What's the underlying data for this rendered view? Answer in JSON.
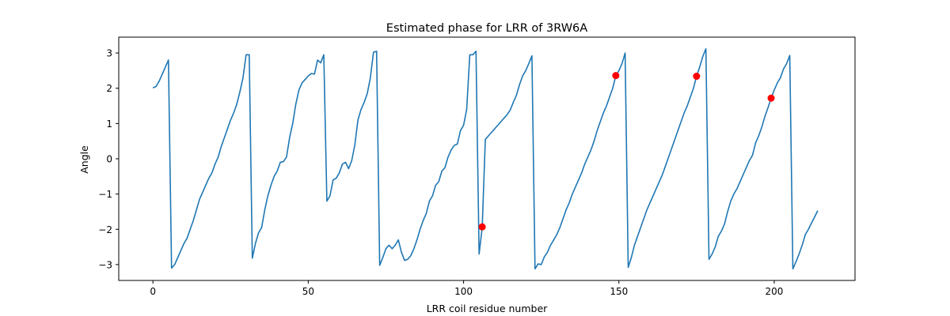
{
  "chart_data": {
    "type": "line",
    "title": "Estimated phase for LRR of 3RW6A",
    "xlabel": "LRR coil residue number",
    "ylabel": "Angle",
    "xlim": [
      -11,
      226
    ],
    "ylim": [
      -3.45,
      3.45
    ],
    "xticks": [
      0,
      50,
      100,
      150,
      200
    ],
    "yticks": [
      -3,
      -2,
      -1,
      0,
      1,
      2,
      3
    ],
    "grid": false,
    "colors": {
      "line": "#1f77b4",
      "marker": "#ff0000"
    },
    "series": [
      {
        "values": [
          [
            0,
            2.01
          ],
          [
            1,
            2.05
          ],
          [
            2,
            2.2
          ],
          [
            3,
            2.4
          ],
          [
            4,
            2.6
          ],
          [
            5,
            2.8
          ],
          [
            6,
            -3.1
          ],
          [
            7,
            -3.0
          ],
          [
            8,
            -2.8
          ],
          [
            9,
            -2.6
          ],
          [
            10,
            -2.4
          ],
          [
            11,
            -2.25
          ],
          [
            12,
            -2.0
          ],
          [
            13,
            -1.75
          ],
          [
            14,
            -1.45
          ],
          [
            15,
            -1.15
          ],
          [
            16,
            -0.95
          ],
          [
            17,
            -0.75
          ],
          [
            18,
            -0.55
          ],
          [
            19,
            -0.4
          ],
          [
            20,
            -0.15
          ],
          [
            21,
            0.05
          ],
          [
            22,
            0.35
          ],
          [
            23,
            0.6
          ],
          [
            24,
            0.85
          ],
          [
            25,
            1.1
          ],
          [
            26,
            1.3
          ],
          [
            27,
            1.55
          ],
          [
            28,
            1.9
          ],
          [
            29,
            2.3
          ],
          [
            30,
            2.95
          ],
          [
            31,
            2.95
          ],
          [
            32,
            -2.82
          ],
          [
            33,
            -2.4
          ],
          [
            34,
            -2.1
          ],
          [
            35,
            -1.95
          ],
          [
            36,
            -1.45
          ],
          [
            37,
            -1.05
          ],
          [
            38,
            -0.75
          ],
          [
            39,
            -0.5
          ],
          [
            40,
            -0.35
          ],
          [
            41,
            -0.1
          ],
          [
            42,
            -0.08
          ],
          [
            43,
            0.05
          ],
          [
            44,
            0.6
          ],
          [
            45,
            1.0
          ],
          [
            46,
            1.55
          ],
          [
            47,
            1.95
          ],
          [
            48,
            2.15
          ],
          [
            49,
            2.25
          ],
          [
            50,
            2.35
          ],
          [
            51,
            2.42
          ],
          [
            52,
            2.4
          ],
          [
            53,
            2.8
          ],
          [
            54,
            2.72
          ],
          [
            55,
            2.95
          ],
          [
            56,
            -1.2
          ],
          [
            57,
            -1.05
          ],
          [
            58,
            -0.6
          ],
          [
            59,
            -0.55
          ],
          [
            60,
            -0.4
          ],
          [
            61,
            -0.15
          ],
          [
            62,
            -0.1
          ],
          [
            63,
            -0.28
          ],
          [
            64,
            -0.05
          ],
          [
            65,
            0.4
          ],
          [
            66,
            1.1
          ],
          [
            67,
            1.4
          ],
          [
            68,
            1.6
          ],
          [
            69,
            1.85
          ],
          [
            70,
            2.3
          ],
          [
            71,
            3.02
          ],
          [
            72,
            3.05
          ],
          [
            73,
            -3.02
          ],
          [
            74,
            -2.8
          ],
          [
            75,
            -2.55
          ],
          [
            76,
            -2.45
          ],
          [
            77,
            -2.55
          ],
          [
            78,
            -2.45
          ],
          [
            79,
            -2.3
          ],
          [
            80,
            -2.65
          ],
          [
            81,
            -2.88
          ],
          [
            82,
            -2.85
          ],
          [
            83,
            -2.75
          ],
          [
            84,
            -2.55
          ],
          [
            85,
            -2.3
          ],
          [
            86,
            -2.0
          ],
          [
            87,
            -1.75
          ],
          [
            88,
            -1.55
          ],
          [
            89,
            -1.2
          ],
          [
            90,
            -1.05
          ],
          [
            91,
            -0.75
          ],
          [
            92,
            -0.65
          ],
          [
            93,
            -0.35
          ],
          [
            94,
            -0.25
          ],
          [
            95,
            0.05
          ],
          [
            96,
            0.25
          ],
          [
            97,
            0.38
          ],
          [
            98,
            0.42
          ],
          [
            99,
            0.8
          ],
          [
            100,
            0.95
          ],
          [
            101,
            1.4
          ],
          [
            102,
            2.95
          ],
          [
            103,
            2.95
          ],
          [
            104,
            3.05
          ],
          [
            105,
            -2.7
          ],
          [
            106,
            -1.95
          ],
          [
            107,
            0.55
          ],
          [
            108,
            0.65
          ],
          [
            109,
            0.75
          ],
          [
            110,
            0.85
          ],
          [
            111,
            0.95
          ],
          [
            112,
            1.05
          ],
          [
            113,
            1.15
          ],
          [
            114,
            1.25
          ],
          [
            115,
            1.38
          ],
          [
            116,
            1.6
          ],
          [
            117,
            1.8
          ],
          [
            118,
            2.1
          ],
          [
            119,
            2.35
          ],
          [
            120,
            2.5
          ],
          [
            121,
            2.7
          ],
          [
            122,
            2.92
          ],
          [
            123,
            -3.12
          ],
          [
            124,
            -2.98
          ],
          [
            125,
            -3.0
          ],
          [
            126,
            -2.78
          ],
          [
            127,
            -2.65
          ],
          [
            128,
            -2.45
          ],
          [
            129,
            -2.3
          ],
          [
            130,
            -2.15
          ],
          [
            131,
            -1.95
          ],
          [
            132,
            -1.7
          ],
          [
            133,
            -1.45
          ],
          [
            134,
            -1.25
          ],
          [
            135,
            -1.0
          ],
          [
            136,
            -0.8
          ],
          [
            137,
            -0.6
          ],
          [
            138,
            -0.4
          ],
          [
            139,
            -0.15
          ],
          [
            140,
            0.05
          ],
          [
            141,
            0.25
          ],
          [
            142,
            0.5
          ],
          [
            143,
            0.8
          ],
          [
            144,
            1.05
          ],
          [
            145,
            1.3
          ],
          [
            146,
            1.5
          ],
          [
            147,
            1.75
          ],
          [
            148,
            2.0
          ],
          [
            149,
            2.35
          ],
          [
            150,
            2.5
          ],
          [
            151,
            2.7
          ],
          [
            152,
            3.0
          ],
          [
            153,
            -3.08
          ],
          [
            154,
            -2.8
          ],
          [
            155,
            -2.45
          ],
          [
            156,
            -2.2
          ],
          [
            157,
            -1.95
          ],
          [
            158,
            -1.7
          ],
          [
            159,
            -1.45
          ],
          [
            160,
            -1.25
          ],
          [
            161,
            -1.05
          ],
          [
            162,
            -0.85
          ],
          [
            163,
            -0.65
          ],
          [
            164,
            -0.45
          ],
          [
            165,
            -0.2
          ],
          [
            166,
            0.05
          ],
          [
            167,
            0.3
          ],
          [
            168,
            0.55
          ],
          [
            169,
            0.8
          ],
          [
            170,
            1.05
          ],
          [
            171,
            1.3
          ],
          [
            172,
            1.5
          ],
          [
            173,
            1.75
          ],
          [
            174,
            2.0
          ],
          [
            175,
            2.34
          ],
          [
            176,
            2.6
          ],
          [
            177,
            2.9
          ],
          [
            178,
            3.12
          ],
          [
            179,
            -2.85
          ],
          [
            180,
            -2.7
          ],
          [
            181,
            -2.5
          ],
          [
            182,
            -2.2
          ],
          [
            183,
            -2.05
          ],
          [
            184,
            -1.85
          ],
          [
            185,
            -1.5
          ],
          [
            186,
            -1.2
          ],
          [
            187,
            -1.0
          ],
          [
            188,
            -0.85
          ],
          [
            189,
            -0.65
          ],
          [
            190,
            -0.45
          ],
          [
            191,
            -0.25
          ],
          [
            192,
            -0.05
          ],
          [
            193,
            0.1
          ],
          [
            194,
            0.45
          ],
          [
            195,
            0.65
          ],
          [
            196,
            0.9
          ],
          [
            197,
            1.2
          ],
          [
            198,
            1.45
          ],
          [
            199,
            1.72
          ],
          [
            200,
            1.95
          ],
          [
            201,
            2.15
          ],
          [
            202,
            2.3
          ],
          [
            203,
            2.55
          ],
          [
            204,
            2.7
          ],
          [
            205,
            2.93
          ],
          [
            206,
            -3.12
          ],
          [
            207,
            -2.92
          ],
          [
            208,
            -2.7
          ],
          [
            209,
            -2.45
          ],
          [
            210,
            -2.15
          ],
          [
            211,
            -2.0
          ],
          [
            212,
            -1.82
          ],
          [
            213,
            -1.65
          ],
          [
            214,
            -1.47
          ]
        ]
      }
    ],
    "markers": [
      {
        "x": 106,
        "y": -1.93
      },
      {
        "x": 149,
        "y": 2.36
      },
      {
        "x": 175,
        "y": 2.34
      },
      {
        "x": 199,
        "y": 1.72
      }
    ]
  }
}
